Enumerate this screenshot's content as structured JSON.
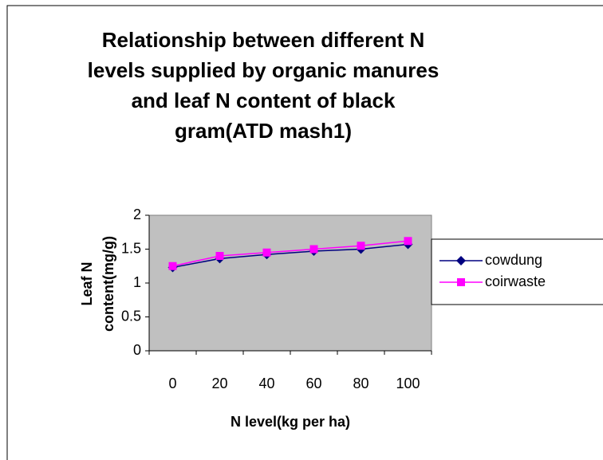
{
  "chart_data": {
    "type": "line",
    "title": [
      "Relationship between different N",
      "levels supplied by organic manures",
      "and leaf N content of black",
      "gram(ATD mash1)"
    ],
    "x_label": "N level(kg per ha)",
    "y_label": [
      "Leaf N",
      "content(mg/g)"
    ],
    "categories": [
      "0",
      "20",
      "40",
      "60",
      "80",
      "100"
    ],
    "series": [
      {
        "name": "cowdung",
        "color": "#000080",
        "marker": "diamond",
        "values": [
          1.23,
          1.36,
          1.42,
          1.47,
          1.5,
          1.57
        ]
      },
      {
        "name": "coirwaste",
        "color": "#ff00ff",
        "marker": "square",
        "values": [
          1.25,
          1.4,
          1.45,
          1.5,
          1.55,
          1.62
        ]
      }
    ],
    "ylim": [
      0,
      2
    ],
    "yticks": [
      0,
      0.5,
      1,
      1.5,
      2
    ],
    "legend": "right"
  }
}
